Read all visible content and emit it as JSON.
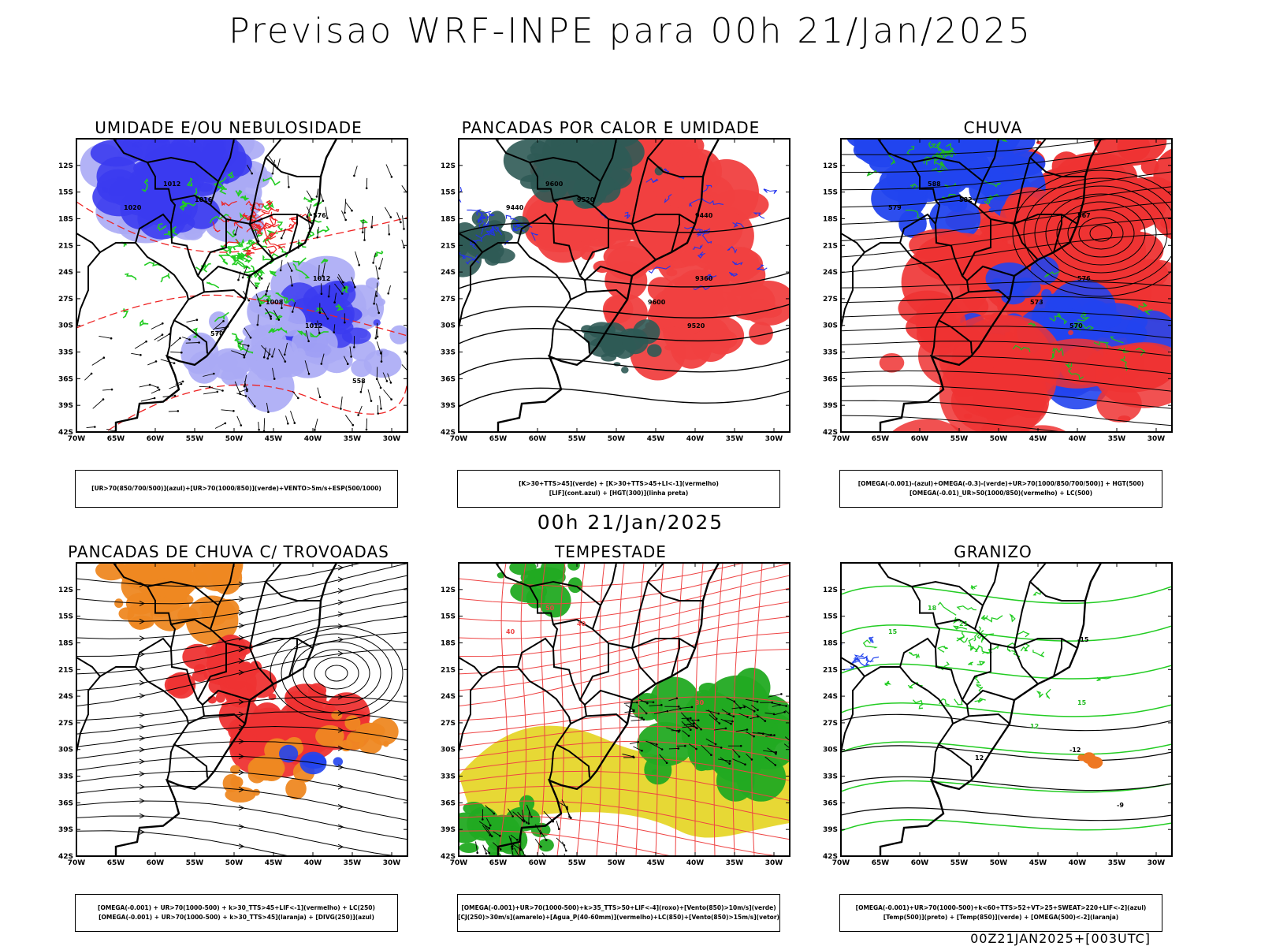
{
  "title": "Previsao WRF-INPE  para 00h 21/Jan/2025",
  "subtitle": "00h 21/Jan/2025",
  "footer": "00Z21JAN2025+[003UTC]",
  "lat_labels": [
    "12S",
    "15S",
    "18S",
    "21S",
    "24S",
    "27S",
    "30S",
    "33S",
    "36S",
    "39S",
    "42S"
  ],
  "lon_labels": [
    "70W",
    "65W",
    "60W",
    "55W",
    "50W",
    "45W",
    "40W",
    "35W",
    "30W"
  ],
  "panels": [
    {
      "title": "UMIDADE E/OU NEBULOSIDADE",
      "legend": [
        "[UR>70(850/700/500)](azul)+[UR>70(1000/850)](verde)+VENTO>5m/s+ESP(500/1000)"
      ],
      "contour_labels": [
        "1012",
        "1016",
        "1020",
        "1012",
        "1008",
        "1012",
        "576",
        "570",
        "558"
      ],
      "colors": {
        "fill1": "#3b3bf0",
        "fill2": "#aaaaf5",
        "line1": "#22cc22",
        "line2": "#ee2222"
      }
    },
    {
      "title": "PANCADAS POR CALOR E UMIDADE",
      "legend": [
        "[K>30+TTS>45](verde) + [K>30+TTS>45+LI<-1](vermelho)",
        "[LIF](cont.azul) + [HGT(300)](linha preta)"
      ],
      "contour_labels": [
        "9600",
        "9520",
        "9440",
        "9360",
        "9600",
        "9520",
        "9440"
      ],
      "colors": {
        "fill1": "#f04040",
        "fill2": "#2f5a55",
        "line1": "#2233ee",
        "line2": "#000000"
      }
    },
    {
      "title": "CHUVA",
      "legend": [
        "[OMEGA(-0.001)-(azul)+OMEGA(-0.3)-(verde)+UR>70(1000/850/700/500)] + HGT(500)",
        "[OMEGA(-0.01)_UR>50(1000/850)(vermelho) + LC(500)"
      ],
      "contour_labels": [
        "588",
        "582",
        "579",
        "576",
        "573",
        "570",
        "567"
      ],
      "colors": {
        "fill1": "#ee3333",
        "fill2": "#2244ee",
        "line1": "#22bb22",
        "line2": "#000000"
      }
    },
    {
      "title": "PANCADAS DE CHUVA C/ TROVOADAS",
      "legend": [
        "[OMEGA(-0.001) + UR>70(1000-500) + k>30_TTS>45+LIF<-1](vermelho) + LC(250)",
        "[OMEGA(-0.001) + UR>70(1000-500) + k>30_TTS>45](laranja) + [DIVG(250)](azul)"
      ],
      "contour_labels": [],
      "colors": {
        "fill1": "#ee3333",
        "fill2": "#ee8822",
        "line1": "#2244ee",
        "line2": "#000000"
      }
    },
    {
      "title": "TEMPESTADE",
      "legend": [
        "[OMEGA(-0.001)+UR>70(1000-500)+k>35_TTS>50+LIF<-4](roxo)+[Vento(850)>10m/s](verde)",
        "[CJ(250)>30m/s](amarelo)+[Agua_P(40-60mm)](vermelho)+LC(850)+[Vento(850)>15m/s](vetor)"
      ],
      "contour_labels": [
        "50",
        "40",
        "40",
        "30"
      ],
      "colors": {
        "fill1": "#e6d62a",
        "fill2": "#22aa22",
        "line1": "#ee4444",
        "line2": "#000000"
      }
    },
    {
      "title": "GRANIZO",
      "legend": [
        "[OMEGA(-0.001)+UR>70(1000-500)+k<60+TTS>52+VT>25+SWEAT>220+LIF<-2](azul)",
        "[Temp(500)](preto) + [Temp(850)](verde) + [OMEGA(500)<-2](laranja)"
      ],
      "contour_labels": [
        "18",
        "21",
        "15",
        "15",
        "12",
        "-12",
        "-15",
        "12",
        "-9"
      ],
      "colors": {
        "fill1": "#22cc22",
        "fill2": "#2244ee",
        "line1": "#22cc22",
        "line2": "#000000"
      }
    }
  ]
}
